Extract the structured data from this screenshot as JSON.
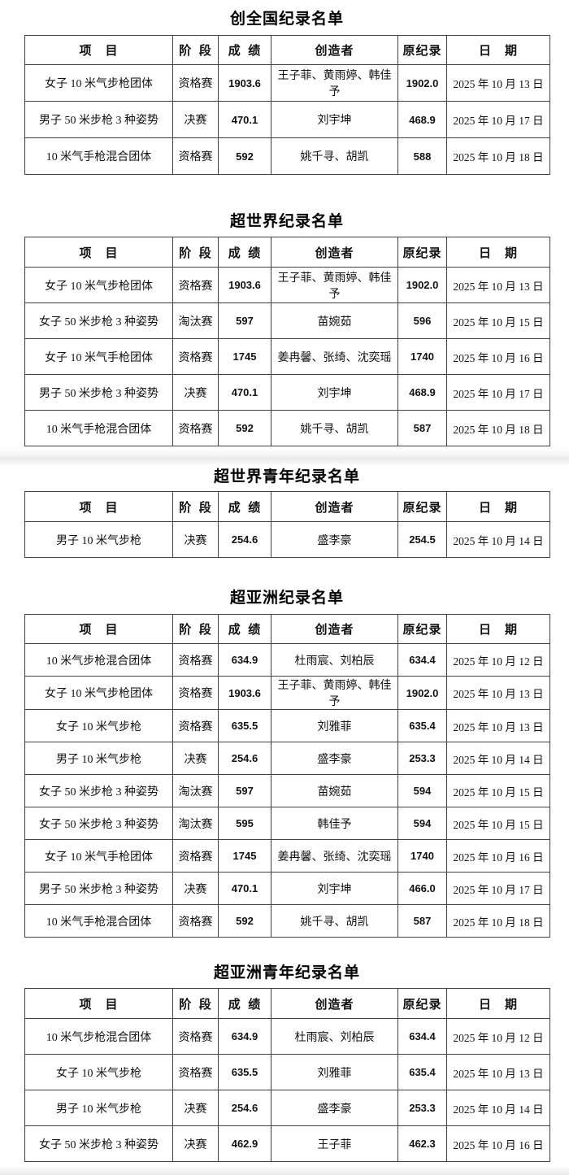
{
  "colors": {
    "background": "#ffffff",
    "table_border": "#3f3f3f",
    "text": "#111111",
    "stitch_band": "#e9e9e9"
  },
  "columns": [
    "项　目",
    "阶 段",
    "成 绩",
    "创造者",
    "原纪录",
    "日　期"
  ],
  "sections": [
    {
      "title": "创全国纪录名单",
      "rows": [
        [
          "女子 10 米气步枪团体",
          "资格赛",
          "1903.6",
          "王子菲、黄雨婷、韩佳予",
          "1902.0",
          "2025 年 10 月 13 日"
        ],
        [
          "男子 50 米步枪 3 种姿势",
          "决赛",
          "470.1",
          "刘宇坤",
          "468.9",
          "2025 年 10 月 17 日"
        ],
        [
          "10 米气手枪混合团体",
          "资格赛",
          "592",
          "姚千寻、胡凯",
          "588",
          "2025 年 10 月 18 日"
        ]
      ]
    },
    {
      "title": "超世界纪录名单",
      "rows": [
        [
          "女子 10 米气步枪团体",
          "资格赛",
          "1903.6",
          "王子菲、黄雨婷、韩佳予",
          "1902.0",
          "2025 年 10 月 13 日"
        ],
        [
          "女子 50 米步枪 3 种姿势",
          "淘汰赛",
          "597",
          "苗婉茹",
          "596",
          "2025 年 10 月 15 日"
        ],
        [
          "女子 10 米气手枪团体",
          "资格赛",
          "1745",
          "姜冉馨、张绮、沈奕瑶",
          "1740",
          "2025 年 10 月 16 日"
        ],
        [
          "男子 50 米步枪 3 种姿势",
          "决赛",
          "470.1",
          "刘宇坤",
          "468.9",
          "2025 年 10 月 17 日"
        ],
        [
          "10 米气手枪混合团体",
          "资格赛",
          "592",
          "姚千寻、胡凯",
          "587",
          "2025 年 10 月 18 日"
        ]
      ]
    },
    {
      "title": "超世界青年纪录名单",
      "rows": [
        [
          "男子 10 米气步枪",
          "决赛",
          "254.6",
          "盛李豪",
          "254.5",
          "2025 年 10 月 14 日"
        ]
      ]
    },
    {
      "title": "超亚洲纪录名单",
      "rows": [
        [
          "10 米气步枪混合团体",
          "资格赛",
          "634.9",
          "杜雨宸、刘柏辰",
          "634.4",
          "2025 年 10 月 12 日"
        ],
        [
          "女子 10 米气步枪团体",
          "资格赛",
          "1903.6",
          "王子菲、黄雨婷、韩佳予",
          "1902.0",
          "2025 年 10 月 13 日"
        ],
        [
          "女子 10 米气步枪",
          "资格赛",
          "635.5",
          "刘雅菲",
          "635.4",
          "2025 年 10 月 13 日"
        ],
        [
          "男子 10 米气步枪",
          "决赛",
          "254.6",
          "盛李豪",
          "253.3",
          "2025 年 10 月 14 日"
        ],
        [
          "女子 50 米步枪 3 种姿势",
          "淘汰赛",
          "597",
          "苗婉茹",
          "594",
          "2025 年 10 月 15 日"
        ],
        [
          "女子 50 米步枪 3 种姿势",
          "淘汰赛",
          "595",
          "韩佳予",
          "594",
          "2025 年 10 月 15 日"
        ],
        [
          "女子 10 米气手枪团体",
          "资格赛",
          "1745",
          "姜冉馨、张绮、沈奕瑶",
          "1740",
          "2025 年 10 月 16 日"
        ],
        [
          "男子 50 米步枪 3 种姿势",
          "决赛",
          "470.1",
          "刘宇坤",
          "466.0",
          "2025 年 10 月 17 日"
        ],
        [
          "10 米气手枪混合团体",
          "资格赛",
          "592",
          "姚千寻、胡凯",
          "587",
          "2025 年 10 月 18 日"
        ]
      ]
    },
    {
      "title": "超亚洲青年纪录名单",
      "rows": [
        [
          "10 米气步枪混合团体",
          "资格赛",
          "634.9",
          "杜雨宸、刘柏辰",
          "634.4",
          "2025 年 10 月 12 日"
        ],
        [
          "女子 10 米气步枪",
          "资格赛",
          "635.5",
          "刘雅菲",
          "635.4",
          "2025 年 10 月 13 日"
        ],
        [
          "男子 10 米气步枪",
          "决赛",
          "254.6",
          "盛李豪",
          "253.3",
          "2025 年 10 月 14 日"
        ],
        [
          "女子 50 米步枪 3 种姿势",
          "决赛",
          "462.9",
          "王子菲",
          "462.3",
          "2025 年 10 月 16 日"
        ]
      ]
    }
  ]
}
